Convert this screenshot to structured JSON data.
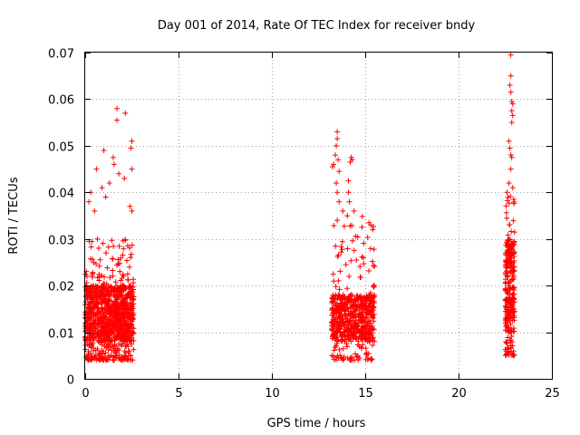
{
  "chart_data": {
    "type": "scatter",
    "title": "Day 001 of 2014, Rate Of TEC Index for receiver bndy",
    "xlabel": "GPS time / hours",
    "ylabel": "ROTI / TECUs",
    "xlim": [
      0,
      25
    ],
    "ylim": [
      0,
      0.07
    ],
    "xticks": [
      0,
      5,
      10,
      15,
      20,
      25
    ],
    "xtick_labels": [
      "0",
      "5",
      "10",
      "15",
      "20",
      "25"
    ],
    "yticks": [
      0,
      0.01,
      0.02,
      0.03,
      0.04,
      0.05,
      0.06,
      0.07
    ],
    "ytick_labels": [
      "0",
      "0.01",
      "0.02",
      "0.03",
      "0.04",
      "0.05",
      "0.06",
      "0.07"
    ],
    "grid": true,
    "marker": "+",
    "color": "#ff0000",
    "series": [
      {
        "name": "ROTI",
        "clusters": [
          {
            "x_range": [
              0.0,
              2.6
            ],
            "y_range": [
              0.004,
              0.03
            ],
            "dense_y_range": [
              0.008,
              0.02
            ],
            "count": 1100
          },
          {
            "x_range": [
              13.2,
              15.5
            ],
            "y_range": [
              0.004,
              0.035
            ],
            "dense_y_range": [
              0.008,
              0.018
            ],
            "count": 650
          },
          {
            "x_range": [
              22.5,
              23.0
            ],
            "y_range": [
              0.005,
              0.04
            ],
            "dense_y_range": [
              0.01,
              0.03
            ],
            "count": 280
          }
        ],
        "outliers": [
          {
            "x": 1.7,
            "y": 0.058
          },
          {
            "x": 1.7,
            "y": 0.0555
          },
          {
            "x": 2.15,
            "y": 0.057
          },
          {
            "x": 2.5,
            "y": 0.051
          },
          {
            "x": 2.45,
            "y": 0.0495
          },
          {
            "x": 2.5,
            "y": 0.045
          },
          {
            "x": 1.0,
            "y": 0.049
          },
          {
            "x": 1.5,
            "y": 0.0475
          },
          {
            "x": 1.55,
            "y": 0.046
          },
          {
            "x": 0.6,
            "y": 0.045
          },
          {
            "x": 0.3,
            "y": 0.04
          },
          {
            "x": 1.8,
            "y": 0.044
          },
          {
            "x": 2.1,
            "y": 0.043
          },
          {
            "x": 0.9,
            "y": 0.041
          },
          {
            "x": 1.3,
            "y": 0.042
          },
          {
            "x": 0.2,
            "y": 0.038
          },
          {
            "x": 2.4,
            "y": 0.037
          },
          {
            "x": 2.5,
            "y": 0.036
          },
          {
            "x": 1.1,
            "y": 0.039
          },
          {
            "x": 0.5,
            "y": 0.036
          },
          {
            "x": 13.5,
            "y": 0.053
          },
          {
            "x": 13.5,
            "y": 0.0515
          },
          {
            "x": 13.45,
            "y": 0.05
          },
          {
            "x": 13.4,
            "y": 0.048
          },
          {
            "x": 13.3,
            "y": 0.046
          },
          {
            "x": 13.25,
            "y": 0.0455
          },
          {
            "x": 13.6,
            "y": 0.0445
          },
          {
            "x": 13.55,
            "y": 0.047
          },
          {
            "x": 14.25,
            "y": 0.0475
          },
          {
            "x": 14.3,
            "y": 0.047
          },
          {
            "x": 14.2,
            "y": 0.0465
          },
          {
            "x": 14.1,
            "y": 0.0425
          },
          {
            "x": 14.1,
            "y": 0.04
          },
          {
            "x": 14.15,
            "y": 0.038
          },
          {
            "x": 13.45,
            "y": 0.042
          },
          {
            "x": 13.5,
            "y": 0.04
          },
          {
            "x": 13.6,
            "y": 0.038
          },
          {
            "x": 15.2,
            "y": 0.0335
          },
          {
            "x": 15.3,
            "y": 0.033
          },
          {
            "x": 15.4,
            "y": 0.032
          },
          {
            "x": 13.8,
            "y": 0.036
          },
          {
            "x": 14.4,
            "y": 0.036
          },
          {
            "x": 13.5,
            "y": 0.034
          },
          {
            "x": 22.8,
            "y": 0.0695
          },
          {
            "x": 22.8,
            "y": 0.065
          },
          {
            "x": 22.75,
            "y": 0.063
          },
          {
            "x": 22.8,
            "y": 0.0615
          },
          {
            "x": 22.85,
            "y": 0.0595
          },
          {
            "x": 22.9,
            "y": 0.059
          },
          {
            "x": 22.85,
            "y": 0.0575
          },
          {
            "x": 22.9,
            "y": 0.0565
          },
          {
            "x": 22.85,
            "y": 0.055
          },
          {
            "x": 22.7,
            "y": 0.051
          },
          {
            "x": 22.75,
            "y": 0.0495
          },
          {
            "x": 22.8,
            "y": 0.048
          },
          {
            "x": 22.85,
            "y": 0.0475
          },
          {
            "x": 22.8,
            "y": 0.045
          },
          {
            "x": 22.7,
            "y": 0.042
          },
          {
            "x": 22.9,
            "y": 0.041
          },
          {
            "x": 22.6,
            "y": 0.04
          },
          {
            "x": 22.95,
            "y": 0.0385
          }
        ]
      }
    ]
  }
}
